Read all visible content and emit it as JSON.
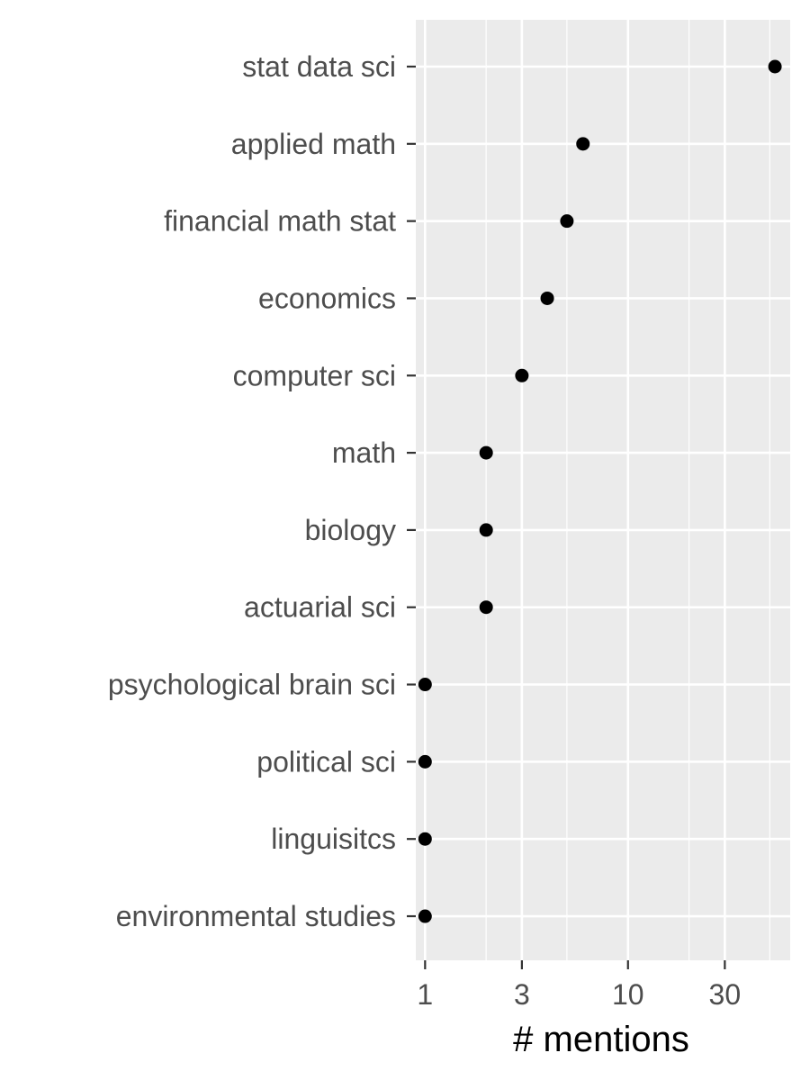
{
  "chart_data": {
    "type": "scatter",
    "xlabel": "# mentions",
    "ylabel": "",
    "title": "",
    "x_scale": "log10",
    "xlim": [
      0.9,
      63
    ],
    "x_ticks": [
      1,
      3,
      10,
      30
    ],
    "x_tick_labels": [
      "1",
      "3",
      "10",
      "30"
    ],
    "x_minor_ticks": [
      2,
      5,
      20,
      50
    ],
    "grid": true,
    "legend": "none",
    "categories": [
      "stat data sci",
      "applied math",
      "financial math stat",
      "economics",
      "computer sci",
      "math",
      "biology",
      "actuarial sci",
      "psychological brain sci",
      "political sci",
      "linguisitcs",
      "environmental studies"
    ],
    "values": [
      53,
      6,
      5,
      4,
      3,
      2,
      2,
      2,
      1,
      1,
      1,
      1
    ],
    "colors": {
      "panel": "#ebebeb",
      "grid": "#ffffff",
      "point": "#000000",
      "text": "#4d4d4d"
    }
  }
}
